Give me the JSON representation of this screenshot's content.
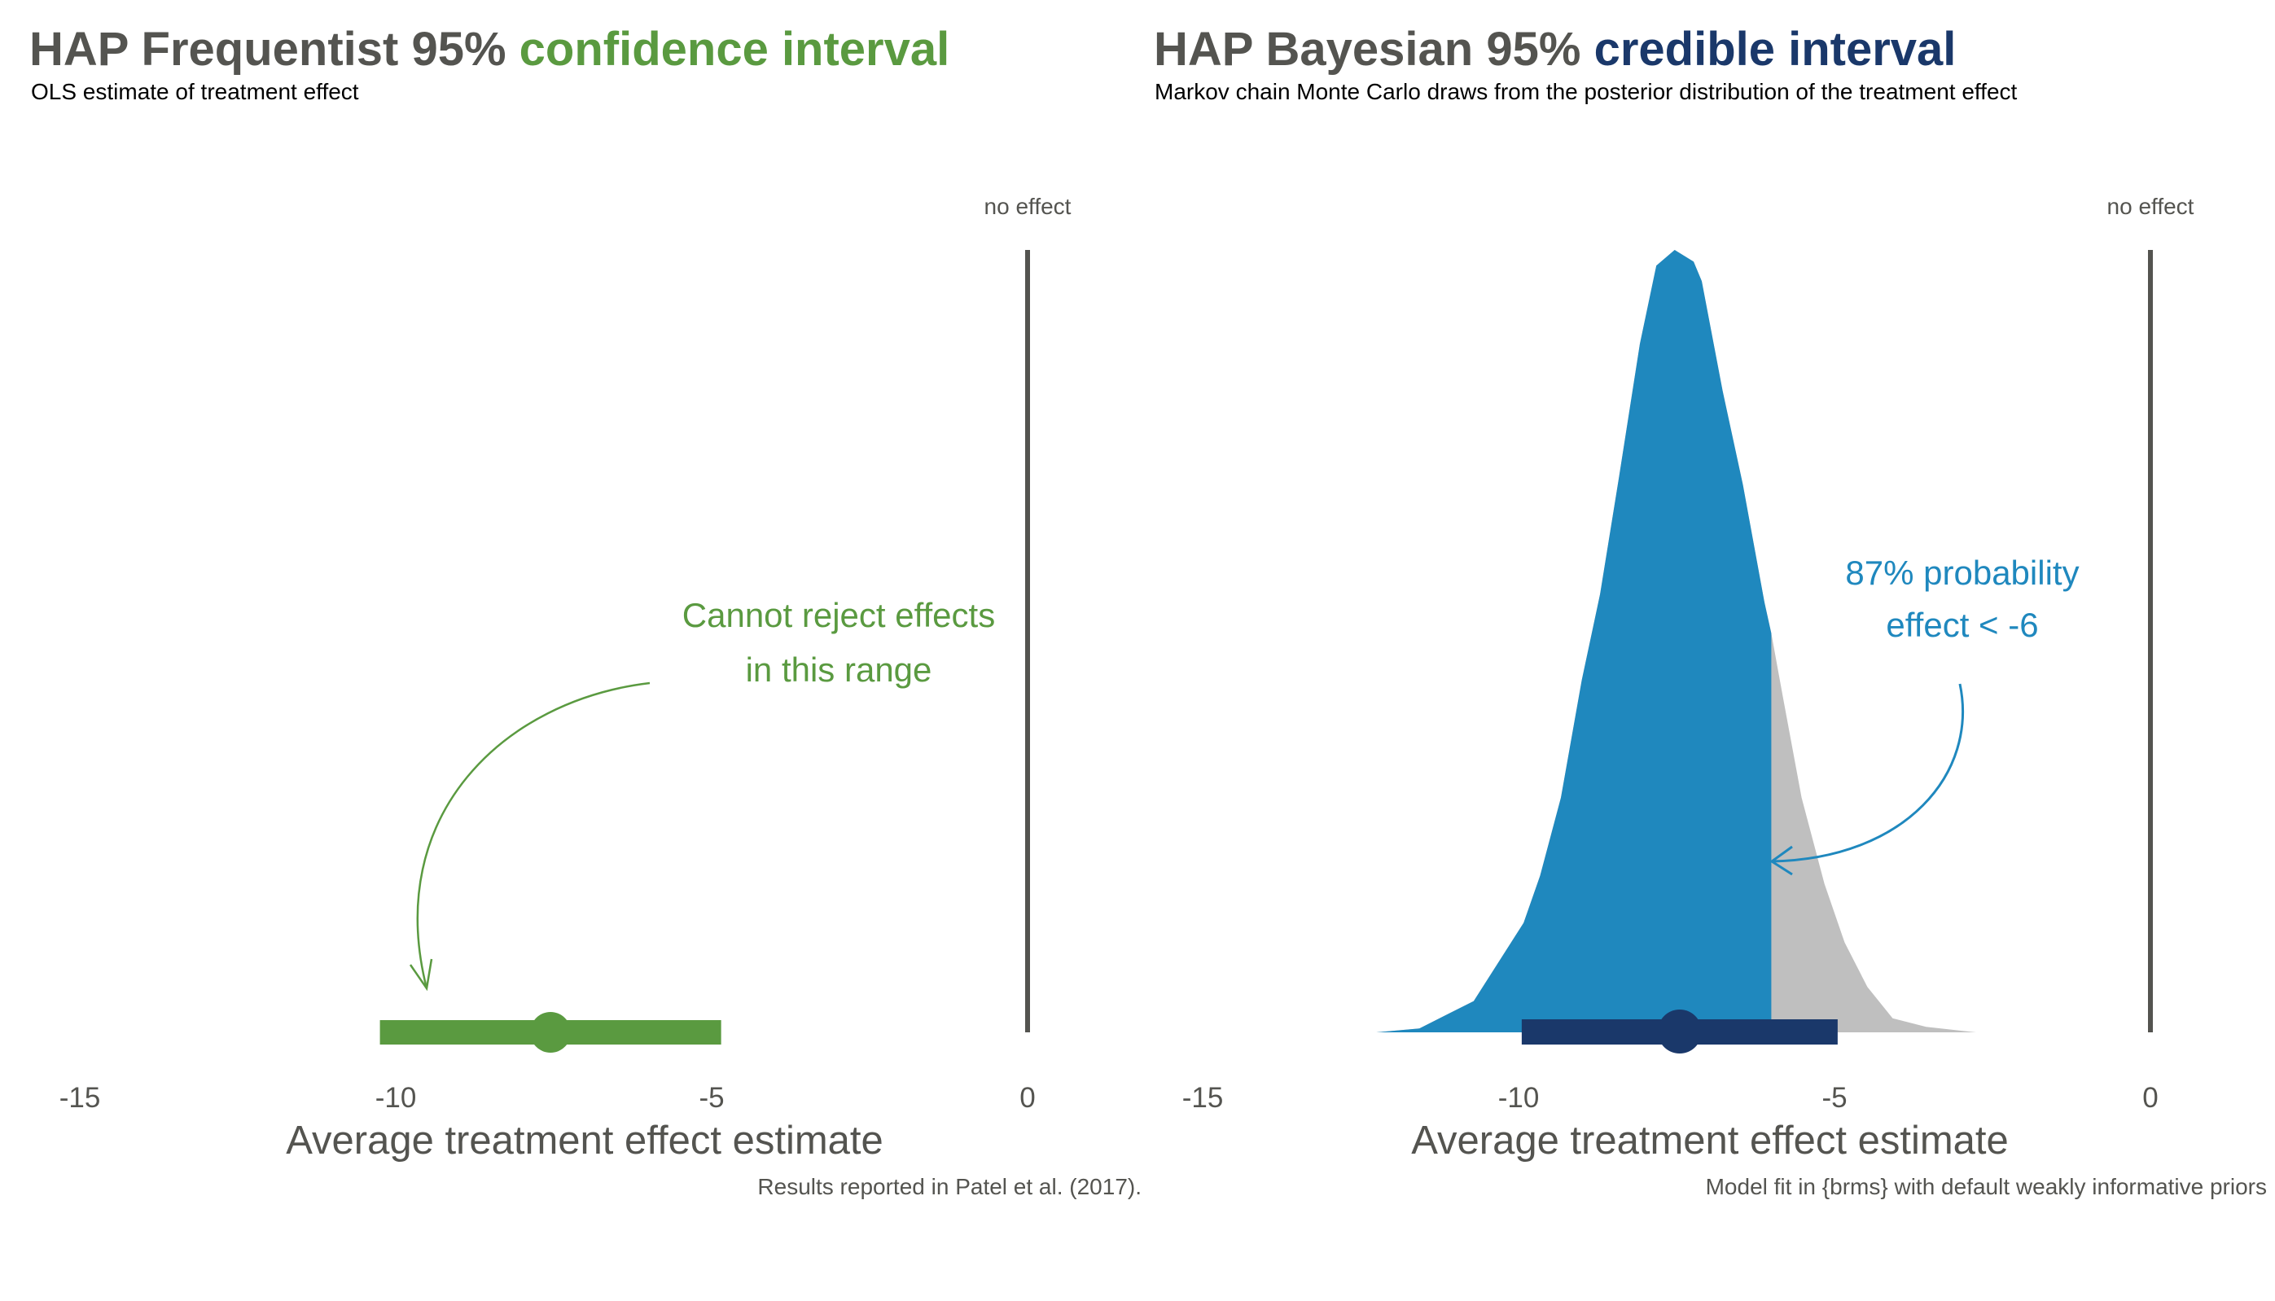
{
  "colors": {
    "text_gray": "#545450",
    "green": "#5a9a40",
    "blue": "#1f88be",
    "navy": "#1a386a",
    "gray_fill": "#bfbfbf",
    "ref_line": "#545450"
  },
  "chart_data": [
    {
      "type": "interval",
      "title_prefix": "HAP Frequentist 95%",
      "title_highlight": "confidence interval",
      "subtitle": "OLS estimate of treatment effect",
      "xlabel": "Average treatment effect estimate",
      "caption": "Results reported in Patel et al. (2017).",
      "xlim": [
        -15,
        0
      ],
      "ticks": [
        -15,
        -10,
        -5,
        0
      ],
      "tick_labels": [
        "-15",
        "-10",
        "-5",
        "0"
      ],
      "reference_line": {
        "x": 0,
        "label": "no effect"
      },
      "estimate": -7.55,
      "interval": [
        -10.25,
        -4.85
      ],
      "annotation": {
        "lines": [
          "Cannot reject effects",
          "in this range"
        ]
      }
    },
    {
      "type": "area",
      "title_prefix": "HAP Bayesian 95%",
      "title_highlight": "credible interval",
      "subtitle": "Markov chain Monte Carlo draws from the posterior distribution of the treatment effect",
      "xlabel": "Average treatment effect estimate",
      "caption": "Model fit in {brms} with default weakly informative priors",
      "xlim": [
        -15,
        0
      ],
      "ticks": [
        -15,
        -10,
        -5,
        0
      ],
      "tick_labels": [
        "-15",
        "-10",
        "-5",
        "0"
      ],
      "reference_line": {
        "x": 0,
        "label": "no effect"
      },
      "estimate": -7.45,
      "interval": [
        -9.95,
        -4.95
      ],
      "threshold": -6,
      "probability_below_threshold": 0.87,
      "annotation": {
        "lines": [
          "87% probability",
          "effect < -6"
        ]
      },
      "density": {
        "x": [
          -12.25,
          -11.57,
          -10.71,
          -9.92,
          -9.66,
          -9.33,
          -9.0,
          -8.71,
          -8.41,
          -8.08,
          -7.82,
          -7.53,
          -7.23,
          -7.1,
          -6.77,
          -6.45,
          -6.11,
          -6.0,
          -5.82,
          -5.52,
          -5.16,
          -4.84,
          -4.48,
          -4.08,
          -3.55,
          -2.76
        ],
        "y": [
          0,
          0.005,
          0.04,
          0.14,
          0.2,
          0.3,
          0.45,
          0.56,
          0.71,
          0.88,
          0.98,
          1.0,
          0.985,
          0.96,
          0.82,
          0.7,
          0.55,
          0.51,
          0.43,
          0.3,
          0.19,
          0.115,
          0.058,
          0.018,
          0.007,
          0
        ]
      }
    }
  ]
}
